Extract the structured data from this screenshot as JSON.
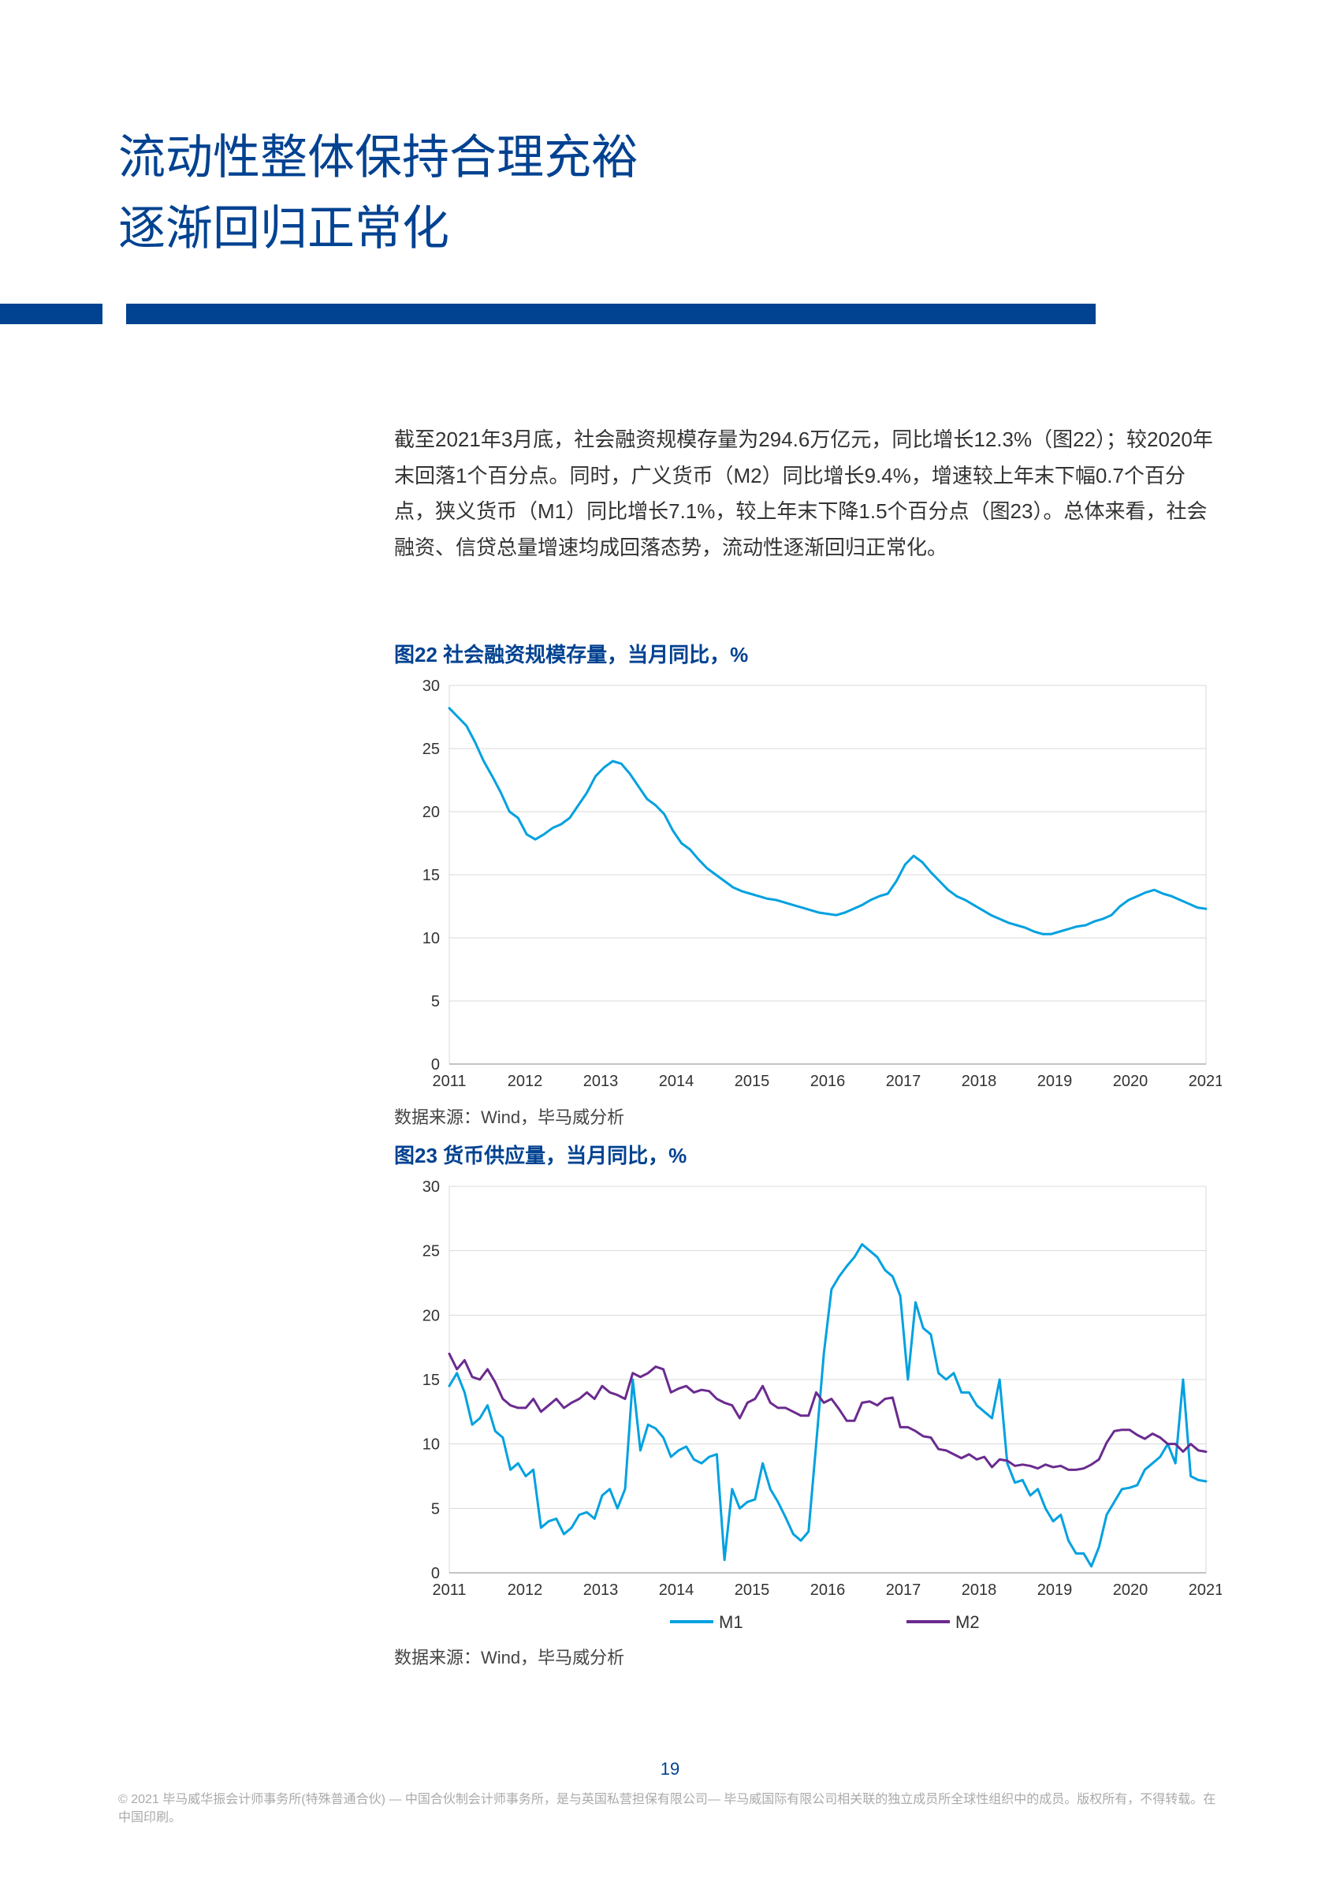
{
  "title_line1": "流动性整体保持合理充裕",
  "title_line2": "逐渐回归正常化",
  "body": "截至2021年3月底，社会融资规模存量为294.6万亿元，同比增长12.3%（图22）；较2020年末回落1个百分点。同时，广义货币（M2）同比增长9.4%，增速较上年末下幅0.7个百分点，狭义货币（M1）同比增长7.1%，较上年末下降1.5个百分点（图23）。总体来看，社会融资、信贷总量增速均成回落态势，流动性逐渐回归正常化。",
  "chart22": {
    "type": "line",
    "title": "图22 社会融资规模存量，当月同比，%",
    "source": "数据来源：Wind，毕马威分析",
    "x_labels": [
      "2011",
      "2012",
      "2013",
      "2014",
      "2015",
      "2016",
      "2017",
      "2018",
      "2019",
      "2020",
      "2021"
    ],
    "y_ticks": [
      0,
      5,
      10,
      15,
      20,
      25,
      30
    ],
    "ylim": [
      0,
      30
    ],
    "line_color": "#00a1e0",
    "line_width": 3,
    "grid_color": "#d9d9d9",
    "axis_color": "#555555",
    "series": [
      28.2,
      27.5,
      26.8,
      25.5,
      24.0,
      22.8,
      21.5,
      20.0,
      19.5,
      18.2,
      17.8,
      18.2,
      18.7,
      19.0,
      19.5,
      20.5,
      21.5,
      22.8,
      23.5,
      24.0,
      23.8,
      23.0,
      22.0,
      21.0,
      20.5,
      19.8,
      18.5,
      17.5,
      17.0,
      16.2,
      15.5,
      15.0,
      14.5,
      14.0,
      13.7,
      13.5,
      13.3,
      13.1,
      13.0,
      12.8,
      12.6,
      12.4,
      12.2,
      12.0,
      11.9,
      11.8,
      12.0,
      12.3,
      12.6,
      13.0,
      13.3,
      13.5,
      14.5,
      15.8,
      16.5,
      16.0,
      15.2,
      14.5,
      13.8,
      13.3,
      13.0,
      12.6,
      12.2,
      11.8,
      11.5,
      11.2,
      11.0,
      10.8,
      10.5,
      10.3,
      10.3,
      10.5,
      10.7,
      10.9,
      11.0,
      11.3,
      11.5,
      11.8,
      12.5,
      13.0,
      13.3,
      13.6,
      13.8,
      13.5,
      13.3,
      13.0,
      12.7,
      12.4,
      12.3
    ]
  },
  "chart23": {
    "type": "line",
    "title": "图23 货币供应量，当月同比，%",
    "source": "数据来源：Wind，毕马威分析",
    "x_labels": [
      "2011",
      "2012",
      "2013",
      "2014",
      "2015",
      "2016",
      "2017",
      "2018",
      "2019",
      "2020",
      "2021"
    ],
    "y_ticks": [
      0,
      5,
      10,
      15,
      20,
      25,
      30
    ],
    "ylim": [
      0,
      30
    ],
    "grid_color": "#d9d9d9",
    "axis_color": "#555555",
    "legend": [
      {
        "label": "M1",
        "color": "#00a1e0"
      },
      {
        "label": "M2",
        "color": "#6b2b8f"
      }
    ],
    "m1_color": "#00a1e0",
    "m2_color": "#6b2b8f",
    "line_width": 3,
    "m1": [
      14.5,
      15.5,
      14.0,
      11.5,
      12.0,
      13.0,
      11.0,
      10.5,
      8.0,
      8.5,
      7.5,
      8.0,
      3.5,
      4.0,
      4.2,
      3.0,
      3.5,
      4.5,
      4.7,
      4.2,
      6.0,
      6.5,
      5.0,
      6.5,
      15.0,
      9.5,
      11.5,
      11.2,
      10.5,
      9.0,
      9.5,
      9.8,
      8.8,
      8.5,
      9.0,
      9.2,
      1.0,
      6.5,
      5.0,
      5.5,
      5.7,
      8.5,
      6.5,
      5.5,
      4.3,
      3.0,
      2.5,
      3.2,
      10.0,
      17.0,
      22.0,
      23.0,
      23.8,
      24.5,
      25.5,
      25.0,
      24.5,
      23.5,
      23.0,
      21.5,
      15.0,
      21.0,
      19.0,
      18.5,
      15.5,
      15.0,
      15.5,
      14.0,
      14.0,
      13.0,
      12.5,
      12.0,
      15.0,
      8.5,
      7.0,
      7.2,
      6.0,
      6.5,
      5.0,
      4.0,
      4.5,
      2.5,
      1.5,
      1.5,
      0.5,
      2.0,
      4.5,
      5.5,
      6.5,
      6.6,
      6.8,
      8.0,
      8.5,
      9.0,
      10.0,
      8.5,
      15.0,
      7.5,
      7.2,
      7.1
    ],
    "m2": [
      17.0,
      15.8,
      16.5,
      15.2,
      15.0,
      15.8,
      14.8,
      13.5,
      13.0,
      12.8,
      12.8,
      13.5,
      12.5,
      13.0,
      13.5,
      12.8,
      13.2,
      13.5,
      14.0,
      13.5,
      14.5,
      14.0,
      13.8,
      13.5,
      15.5,
      15.2,
      15.5,
      16.0,
      15.8,
      14.0,
      14.3,
      14.5,
      14.0,
      14.2,
      14.1,
      13.5,
      13.2,
      13.0,
      12.0,
      13.2,
      13.5,
      14.5,
      13.2,
      12.8,
      12.8,
      12.5,
      12.2,
      12.2,
      14.0,
      13.2,
      13.5,
      12.7,
      11.8,
      11.8,
      13.2,
      13.3,
      13.0,
      13.5,
      13.6,
      11.3,
      11.3,
      11.0,
      10.6,
      10.5,
      9.6,
      9.5,
      9.2,
      8.9,
      9.2,
      8.8,
      9.0,
      8.2,
      8.8,
      8.7,
      8.3,
      8.4,
      8.3,
      8.1,
      8.4,
      8.2,
      8.3,
      8.0,
      8.0,
      8.1,
      8.4,
      8.8,
      10.1,
      11.0,
      11.1,
      11.1,
      10.7,
      10.4,
      10.8,
      10.5,
      10.0,
      10.0,
      9.4,
      10.0,
      9.5,
      9.4
    ]
  },
  "page_number": "19",
  "footer": "© 2021 毕马威华振会计师事务所(特殊普通合伙) — 中国合伙制会计师事务所，是与英国私营担保有限公司— 毕马威国际有限公司相关联的独立成员所全球性组织中的成员。版权所有，不得转载。在中国印刷。"
}
